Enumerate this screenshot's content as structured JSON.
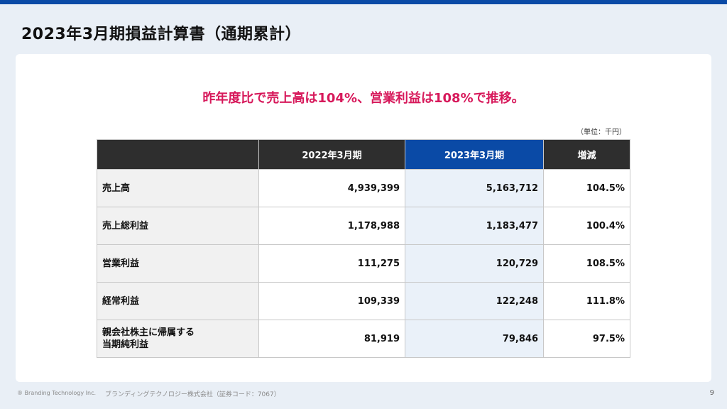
{
  "page": {
    "title": "2023年3月期損益計算書（通期累計）",
    "headline": "昨年度比で売上高は104%、営業利益は108%で推移。",
    "unit_note": "（単位：千円）"
  },
  "table": {
    "headers": [
      "",
      "2022年3月期",
      "2023年3月期",
      "増減"
    ],
    "rows": [
      {
        "item": "売上高",
        "fy2022": "4,939,399",
        "fy2023": "5,163,712",
        "change": "104.5%"
      },
      {
        "item": "売上総利益",
        "fy2022": "1,178,988",
        "fy2023": "1,183,477",
        "change": "100.4%"
      },
      {
        "item": "営業利益",
        "fy2022": "111,275",
        "fy2023": "120,729",
        "change": "108.5%"
      },
      {
        "item": "経常利益",
        "fy2022": "109,339",
        "fy2023": "122,248",
        "change": "111.8%"
      },
      {
        "item_line1": "親会社株主に帰属する",
        "item_line2": "当期純利益",
        "fy2022": "81,919",
        "fy2023": "79,846",
        "change": "97.5%"
      }
    ]
  },
  "footer": {
    "copyright": "® Branding Technology Inc.",
    "company": "ブランディングテクノロジー株式会社（証券コード：7067）",
    "page_number": "9"
  },
  "colors": {
    "accent_blue": "#0a4aa6",
    "headline_pink": "#d7195b",
    "header_dark": "#2e2e2e",
    "background": "#e9eff6"
  }
}
